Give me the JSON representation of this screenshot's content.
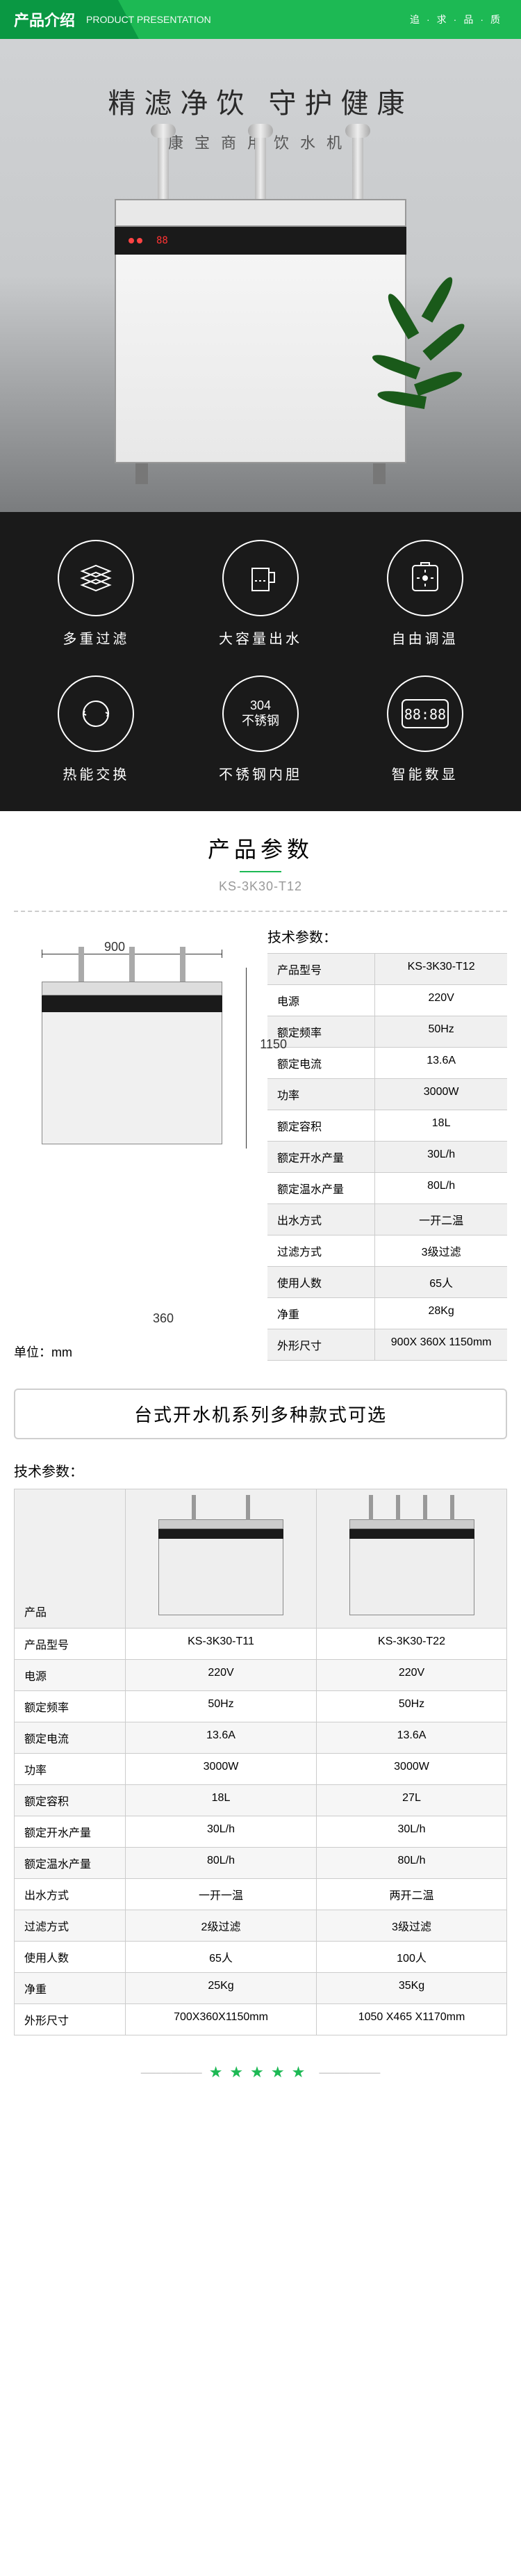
{
  "header": {
    "title_cn": "产品介绍",
    "title_en": "PRODUCT PRESENTATION",
    "quality": "追·求·品·质"
  },
  "hero": {
    "headline": "精滤净饮  守护健康",
    "subtitle": "康宝商用饮水机"
  },
  "features": [
    {
      "label": "多重过滤",
      "icon": "filter-layers"
    },
    {
      "label": "大容量出水",
      "icon": "big-cup"
    },
    {
      "label": "自由调温",
      "icon": "thermostat"
    },
    {
      "label": "热能交换",
      "icon": "heat-exchange"
    },
    {
      "label": "不锈钢内胆",
      "icon": "steel-304"
    },
    {
      "label": "智能数显",
      "icon": "digital-display"
    }
  ],
  "spec_header": {
    "title": "产品参数",
    "model": "KS-3K30-T12"
  },
  "dims": {
    "width": "900",
    "height": "1150",
    "depth": "360",
    "unit": "单位：mm"
  },
  "spec_table_title": "技术参数：",
  "spec_rows": [
    {
      "label": "产品型号",
      "value": "KS-3K30-T12"
    },
    {
      "label": "电源",
      "value": "220V"
    },
    {
      "label": "额定频率",
      "value": "50Hz"
    },
    {
      "label": "额定电流",
      "value": "13.6A"
    },
    {
      "label": "功率",
      "value": "3000W"
    },
    {
      "label": "额定容积",
      "value": "18L"
    },
    {
      "label": "额定开水产量",
      "value": "30L/h"
    },
    {
      "label": "额定温水产量",
      "value": "80L/h"
    },
    {
      "label": "出水方式",
      "value": "一开二温"
    },
    {
      "label": "过滤方式",
      "value": "3级过滤"
    },
    {
      "label": "使用人数",
      "value": "65人"
    },
    {
      "label": "净重",
      "value": "28Kg"
    },
    {
      "label": "外形尺寸",
      "value": "900X 360X 1150mm"
    }
  ],
  "variants": {
    "banner": "台式开水机系列多种款式可选",
    "subtitle": "技术参数：",
    "product_label": "产品",
    "labels": [
      "产品型号",
      "电源",
      "额定频率",
      "额定电流",
      "功率",
      "额定容积",
      "额定开水产量",
      "额定温水产量",
      "出水方式",
      "过滤方式",
      "使用人数",
      "净重",
      "外形尺寸"
    ],
    "a": [
      "KS-3K30-T11",
      "220V",
      "50Hz",
      "13.6A",
      "3000W",
      "18L",
      "30L/h",
      "80L/h",
      "一开一温",
      "2级过滤",
      "65人",
      "25Kg",
      "700X360X1150mm"
    ],
    "b": [
      "KS-3K30-T22",
      "220V",
      "50Hz",
      "13.6A",
      "3000W",
      "27L",
      "30L/h",
      "80L/h",
      "两开二温",
      "3级过滤",
      "100人",
      "35Kg",
      "1050 X465 X1170mm"
    ]
  },
  "stars": "★★★★★",
  "colors": {
    "brand_green": "#1db954",
    "dark_green": "#0a9843",
    "feature_bg": "#1a1a1a",
    "text_primary": "#2a2a2a",
    "text_secondary": "#555555",
    "border_gray": "#cccccc",
    "row_shade": "#f0f0f0"
  }
}
